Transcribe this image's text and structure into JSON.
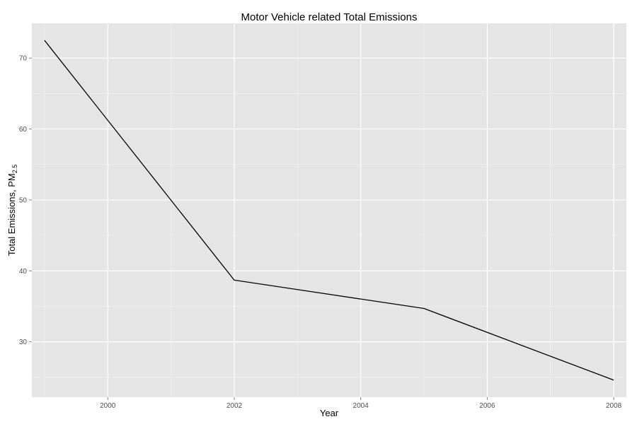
{
  "chart_data": {
    "type": "line",
    "title": "Motor Vehicle related Total Emissions",
    "xlabel": "Year",
    "ylabel": "Total Emissions, PM",
    "ylabel_subscript": "2.5",
    "x": [
      1999,
      2002,
      2005,
      2008
    ],
    "series": [
      {
        "values": [
          72.5,
          38.7,
          34.7,
          24.6
        ]
      }
    ],
    "xlim": [
      1998.8,
      2008.2
    ],
    "ylim": [
      22.2,
      74.9
    ],
    "x_ticks": [
      2000,
      2002,
      2004,
      2006,
      2008
    ],
    "y_ticks": [
      30,
      40,
      50,
      60,
      70
    ],
    "grid": true,
    "line_color": "#000000",
    "panel_color": "#e5e5e5",
    "grid_color": "#ffffff"
  }
}
